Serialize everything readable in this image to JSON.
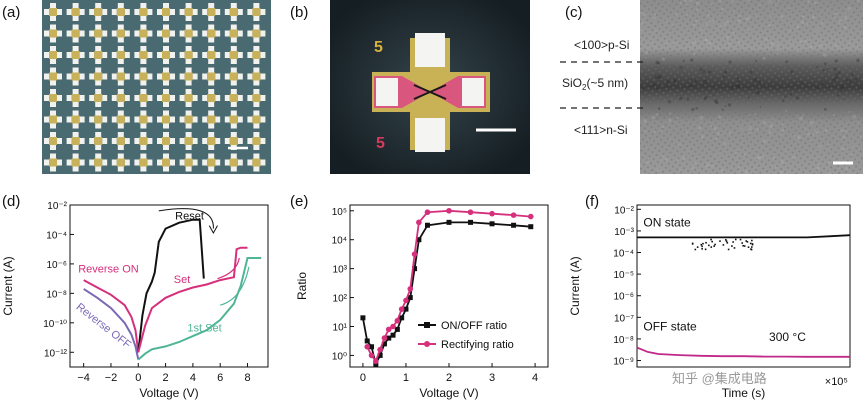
{
  "panels": {
    "a": {
      "label": "(a)"
    },
    "b": {
      "label": "(b)",
      "marks": [
        "5",
        "5"
      ]
    },
    "c": {
      "label": "(c)",
      "layer_top": "<100>p-Si",
      "layer_mid_main": "SiO",
      "layer_mid_sub": "2",
      "layer_mid_rest": "(~5 nm)",
      "layer_bottom": "<111>n-Si"
    }
  },
  "chart_data": [
    {
      "panel": "(d)",
      "type": "line",
      "xlabel": "Voltage (V)",
      "ylabel": "Current (A)",
      "xlim": [
        -5,
        9.5
      ],
      "ylim_log10": [
        -13,
        -2
      ],
      "xticks": [
        "−4",
        "−2",
        "0",
        "2",
        "4",
        "6",
        "8"
      ],
      "yticks": [
        "10⁻²",
        "10⁻⁴",
        "10⁻⁶",
        "10⁻⁸",
        "10⁻¹⁰",
        "10⁻¹²"
      ],
      "annotations": [
        "Reset",
        "Reverse ON",
        "Set",
        "Reverse OFF",
        "1st Set"
      ],
      "series": [
        {
          "name": "Reverse ON",
          "color": "#d62f7c",
          "x": [
            -4,
            -3,
            -2,
            -1,
            -0.5,
            -0.2,
            0
          ],
          "log10_y": [
            -7.1,
            -7.6,
            -8.1,
            -8.8,
            -9.6,
            -10.5,
            -12
          ]
        },
        {
          "name": "Reverse OFF",
          "color": "#7b68b5",
          "x": [
            -4,
            -3,
            -2,
            -1,
            -0.5,
            -0.2,
            0
          ],
          "log10_y": [
            -7.7,
            -8.3,
            -9.0,
            -10.0,
            -10.8,
            -11.6,
            -12.5
          ]
        },
        {
          "name": "Reset",
          "color": "#111111",
          "x": [
            0,
            0.3,
            0.6,
            1,
            1.2,
            1.5,
            2,
            3,
            4,
            4.5,
            4.8
          ],
          "log10_y": [
            -12,
            -9.5,
            -8.0,
            -7.2,
            -6.6,
            -4.5,
            -3.6,
            -3.2,
            -3.0,
            -3.0,
            -7.0
          ]
        },
        {
          "name": "Set",
          "color": "#d62f7c",
          "x": [
            0,
            0.5,
            1,
            2,
            3,
            4,
            5,
            6,
            7,
            7.2,
            7.5,
            8
          ],
          "log10_y": [
            -12,
            -10.2,
            -9.0,
            -8.3,
            -7.9,
            -7.6,
            -7.4,
            -7.1,
            -6.9,
            -5.0,
            -4.9,
            -4.9
          ]
        },
        {
          "name": "1st Set",
          "color": "#4fb596",
          "x": [
            0,
            0.5,
            1,
            2,
            3,
            4,
            5,
            6,
            7,
            7.5,
            8,
            9
          ],
          "log10_y": [
            -12.5,
            -12.1,
            -11.8,
            -11.6,
            -11.3,
            -10.9,
            -10.5,
            -9.8,
            -8.7,
            -7.5,
            -5.6,
            -5.6
          ]
        }
      ]
    },
    {
      "panel": "(e)",
      "type": "line",
      "xlabel": "Voltage (V)",
      "ylabel": "Ratio",
      "xlim": [
        -0.3,
        4.3
      ],
      "ylim_log10": [
        -0.4,
        5.2
      ],
      "xticks": [
        "0",
        "1",
        "2",
        "3",
        "4"
      ],
      "yticks": [
        "10⁰",
        "10¹",
        "10²",
        "10³",
        "10⁴",
        "10⁵"
      ],
      "legend": [
        "ON/OFF ratio",
        "Rectifying ratio"
      ],
      "legend_position": "bottom-right",
      "series": [
        {
          "name": "ON/OFF ratio",
          "color": "#111111",
          "marker": "square",
          "x": [
            0,
            0.1,
            0.2,
            0.3,
            0.4,
            0.5,
            0.6,
            0.7,
            0.8,
            0.9,
            1.0,
            1.1,
            1.2,
            1.3,
            1.5,
            2.0,
            2.5,
            3.0,
            3.5,
            3.9
          ],
          "log10_y": [
            1.3,
            0.5,
            0.3,
            -0.3,
            0.0,
            0.4,
            0.6,
            0.7,
            0.9,
            1.3,
            1.6,
            2.0,
            3.0,
            4.0,
            4.5,
            4.6,
            4.6,
            4.55,
            4.5,
            4.45
          ]
        },
        {
          "name": "Rectifying ratio",
          "color": "#d62f7c",
          "marker": "circle",
          "x": [
            0.1,
            0.2,
            0.3,
            0.4,
            0.5,
            0.6,
            0.7,
            0.8,
            0.9,
            1.0,
            1.1,
            1.2,
            1.3,
            1.5,
            2.0,
            2.5,
            3.0,
            3.5,
            3.9
          ],
          "log10_y": [
            0.3,
            0.0,
            -0.2,
            0.2,
            0.6,
            0.9,
            1.0,
            1.2,
            1.6,
            1.9,
            2.3,
            3.5,
            4.6,
            4.95,
            5.0,
            4.95,
            4.9,
            4.85,
            4.8
          ]
        }
      ]
    },
    {
      "panel": "(f)",
      "type": "line",
      "xlabel": "Time (s)",
      "ylabel": "Current (A)",
      "xlim": [
        0,
        100000
      ],
      "ylim_log10": [
        -9.3,
        -1.8
      ],
      "xticks": [
        "×10⁵"
      ],
      "yticks": [
        "10⁻²",
        "10⁻³",
        "10⁻⁴",
        "10⁻⁵",
        "10⁻⁶",
        "10⁻⁷",
        "10⁻⁸",
        "10⁻⁹"
      ],
      "annotations": [
        "ON state",
        "OFF state",
        "300 °C"
      ],
      "series": [
        {
          "name": "ON state",
          "color": "#111111",
          "x": [
            0,
            10000,
            20000,
            30000,
            40000,
            50000,
            60000,
            70000,
            80000,
            90000,
            100000
          ],
          "log10_y": [
            -3.3,
            -3.3,
            -3.3,
            -3.3,
            -3.3,
            -3.3,
            -3.3,
            -3.3,
            -3.3,
            -3.25,
            -3.2
          ]
        },
        {
          "name": "OFF state",
          "color": "#c0288a",
          "x": [
            0,
            5000,
            10000,
            20000,
            30000,
            40000,
            50000,
            60000,
            70000,
            80000,
            90000,
            100000
          ],
          "log10_y": [
            -8.4,
            -8.6,
            -8.7,
            -8.75,
            -8.78,
            -8.8,
            -8.8,
            -8.82,
            -8.82,
            -8.83,
            -8.83,
            -8.83
          ]
        }
      ]
    }
  ],
  "watermark": "知乎 @集成电路"
}
